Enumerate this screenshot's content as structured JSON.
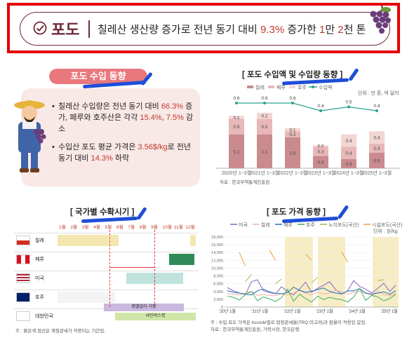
{
  "header": {
    "title": "포도",
    "headline_prefix": "칠레산 생산량 증가로 전년 동기 대비 ",
    "headline_pct": "9.3%",
    "headline_mid": " 증가한 ",
    "headline_amount_a": "1",
    "headline_amount_unit_a": "만 ",
    "headline_amount_b": "2",
    "headline_amount_unit_b": "천 톤"
  },
  "import_trend": {
    "tag": "포도 수입 동향",
    "bullet1_a": "칠레산 수입량은 전년 동기 대비 ",
    "bullet1_pct": "66.3%",
    "bullet1_b": " 증가, 페루와 호주산은 각각 ",
    "bullet1_peru": "15.4%",
    "bullet1_sep": ", ",
    "bullet1_aus": "7.5%",
    "bullet1_c": " 감소",
    "bullet2_a": "수입산 포도 평균 가격은 ",
    "bullet2_price": "3.56$/kg",
    "bullet2_b": "로 전년 동기 대비 ",
    "bullet2_pct": "14.3%",
    "bullet2_c": " 하락"
  },
  "import_chart": {
    "title": "[ 포도 수입액 및 수입량 동향 ]",
    "unit": "단위 : 만 톤, 억 달러",
    "legend": [
      "칠레",
      "페루",
      "호주",
      "수입액"
    ],
    "source": "자료 : 한국무역통계진흥원."
  },
  "season_chart": {
    "title": "[ 국가별 수확시기 ]",
    "months": [
      "1월",
      "2월",
      "3월",
      "4월",
      "5월",
      "6월",
      "7월",
      "8월",
      "9월",
      "10월",
      "11월",
      "12월"
    ],
    "countries": [
      "칠레",
      "페루",
      "미국",
      "호주",
      "대한민국"
    ],
    "label_campbell": "캠벨얼리·거봉",
    "label_shine": "샤인머스캣",
    "note": "주 : 붉은색 점선은 계절관세가 적용되는 기간임."
  },
  "price_chart": {
    "title": "[ 포도 가격 동향 ]",
    "legend": [
      "미국",
      "칠레",
      "페루",
      "호주",
      "노지포도(국산)",
      "시설포도(국산)"
    ],
    "unit": "단위 : 원/kg",
    "note": "주 : 수입 포도 가격은 hscode별로 협정관세율(TRQ 미고려)과 환율이 적용된 값임.",
    "source": "자료 : 한국무역통계진흥원, 가락시장, 한국은행."
  },
  "colors": {
    "brand": "#6e2a3a",
    "accent": "#c0392b",
    "chile": "#c98b8e",
    "peru": "#e8b8b8",
    "aus": "#f3d6d4",
    "line": "#2aa38f",
    "season_chile": "#f3e7b1",
    "season_peru": "#2e8b57",
    "season_us": "#bfe3dc",
    "season_campbell": "#c9b8df",
    "season_shine": "#cfe6a8"
  },
  "chart_data": [
    {
      "type": "bar",
      "title": "[ 포도 수입액 및 수입량 동향 ]",
      "categories": [
        "2020년 1~3월",
        "2021년 1~3월",
        "2022년 1~3월",
        "2023년 1~3월",
        "2024년 1~3월",
        "2025년 1~3월"
      ],
      "series": [
        {
          "name": "칠레",
          "values": [
            1.1,
            1.1,
            1.0,
            0.4,
            0.3,
            0.5
          ]
        },
        {
          "name": "페루",
          "values": [
            0.5,
            0.5,
            0.2,
            0.3,
            0.4,
            0.3
          ]
        },
        {
          "name": "호주",
          "values": [
            0.1,
            0.2,
            0.1,
            0.0,
            0.4,
            0.4
          ]
        },
        {
          "name": "수입액",
          "values": [
            0.6,
            0.6,
            0.6,
            0.4,
            0.5,
            0.4
          ]
        }
      ],
      "legend": "top"
    },
    {
      "type": "line",
      "title": "[ 포도 가격 동향 ]",
      "x_ticks": [
        "'20년 1월",
        "'21년 1월",
        "'22년 1월",
        "'23년 1월",
        "'24년 1월",
        "'25년 1월"
      ],
      "y_ticks": [
        0,
        2000,
        4000,
        6000,
        8000,
        10000,
        12000,
        14000,
        16000,
        18000
      ],
      "ylim": [
        0,
        18000
      ],
      "series": [
        {
          "name": "미국",
          "values": [
            5000,
            4200,
            3600,
            3200,
            6500,
            7000,
            4200,
            3700,
            3400,
            5200,
            4000,
            3100,
            4600,
            6400,
            3800,
            4800,
            5600,
            6500,
            4500,
            3300,
            4200,
            6800,
            5300,
            4600,
            3600,
            4800,
            6100,
            4000,
            5600
          ]
        },
        {
          "name": "칠레",
          "values": [
            3500,
            3300,
            3100,
            3600,
            4000,
            3000,
            3200,
            3000,
            2900,
            3400,
            3100,
            3700,
            4200,
            3600,
            3100,
            3900,
            3300,
            3600,
            4300,
            3900,
            3300,
            3800,
            4100,
            3500,
            3000,
            4100,
            3200,
            3000,
            3400
          ]
        },
        {
          "name": "페루",
          "values": [
            4200,
            3800,
            3600,
            3300,
            3100,
            4200,
            4600,
            3900,
            3500,
            3400,
            3700,
            5100,
            4300,
            3800,
            4000,
            4500,
            4900,
            4000,
            3600,
            3400,
            4100,
            4200,
            4700,
            3600,
            3300,
            3600,
            3900,
            3300,
            4200
          ]
        },
        {
          "name": "호주",
          "values": [
            2800,
            2500,
            1800,
            3200,
            4000,
            1600,
            2600,
            2100,
            1400,
            2400,
            4600,
            1500,
            3300,
            2200,
            1300,
            2800,
            1900,
            2500,
            2100,
            1900,
            1300,
            2600,
            4800,
            1700,
            3000,
            2600,
            1600,
            2200,
            3300
          ]
        },
        {
          "name": "노지포도(국산)",
          "values": [
            null,
            null,
            null,
            6500,
            8400,
            null,
            null,
            null,
            6000,
            7200,
            null,
            null,
            null,
            null,
            6200,
            7600,
            null,
            null,
            null,
            null,
            7200,
            null,
            null,
            null,
            null,
            6800,
            7000,
            null,
            null
          ]
        },
        {
          "name": "시설포도(국산)",
          "values": [
            null,
            null,
            14000,
            10500,
            null,
            null,
            null,
            14600,
            12000,
            null,
            null,
            null,
            null,
            13600,
            12000,
            null,
            null,
            null,
            null,
            14200,
            11500,
            null,
            null,
            null,
            null,
            14800,
            null,
            null,
            null
          ]
        }
      ],
      "legend": "top"
    }
  ]
}
